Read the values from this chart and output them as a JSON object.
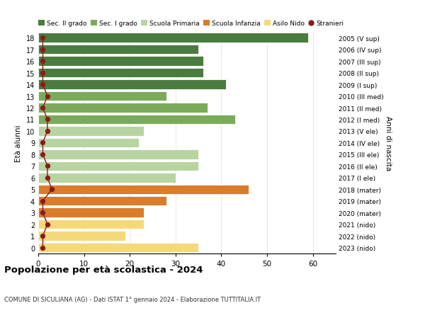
{
  "ages": [
    18,
    17,
    16,
    15,
    14,
    13,
    12,
    11,
    10,
    9,
    8,
    7,
    6,
    5,
    4,
    3,
    2,
    1,
    0
  ],
  "values": [
    59,
    35,
    36,
    36,
    41,
    28,
    37,
    43,
    23,
    22,
    35,
    35,
    30,
    46,
    28,
    23,
    23,
    19,
    35
  ],
  "stranieri": [
    1,
    1,
    1,
    1,
    1,
    2,
    1,
    2,
    2,
    1,
    1,
    2,
    2,
    3,
    1,
    1,
    2,
    1,
    1
  ],
  "right_labels": [
    "2005 (V sup)",
    "2006 (IV sup)",
    "2007 (III sup)",
    "2008 (II sup)",
    "2009 (I sup)",
    "2010 (III med)",
    "2011 (II med)",
    "2012 (I med)",
    "2013 (V ele)",
    "2014 (IV ele)",
    "2015 (III ele)",
    "2016 (II ele)",
    "2017 (I ele)",
    "2018 (mater)",
    "2019 (mater)",
    "2020 (mater)",
    "2021 (nido)",
    "2022 (nido)",
    "2023 (nido)"
  ],
  "bar_colors": [
    "#4a7c3f",
    "#4a7c3f",
    "#4a7c3f",
    "#4a7c3f",
    "#4a7c3f",
    "#7aab5a",
    "#7aab5a",
    "#7aab5a",
    "#b8d4a0",
    "#b8d4a0",
    "#b8d4a0",
    "#b8d4a0",
    "#b8d4a0",
    "#d97c2b",
    "#d97c2b",
    "#d97c2b",
    "#f5d87a",
    "#f5d87a",
    "#f5d87a"
  ],
  "legend_labels": [
    "Sec. II grado",
    "Sec. I grado",
    "Scuola Primaria",
    "Scuola Infanzia",
    "Asilo Nido",
    "Stranieri"
  ],
  "legend_colors": [
    "#4a7c3f",
    "#7aab5a",
    "#b8d4a0",
    "#d97c2b",
    "#f5d87a",
    "#8b1a1a"
  ],
  "title": "Popolazione per età scolastica - 2024",
  "subtitle": "COMUNE DI SICULIANA (AG) - Dati ISTAT 1° gennaio 2024 - Elaborazione TUTTITALIA.IT",
  "ylabel_left": "Età alunni",
  "ylabel_right": "Anni di nascita",
  "stranieri_color": "#8b1a1a",
  "background_color": "#ffffff",
  "xlim": [
    0,
    65
  ],
  "ylim": [
    -0.5,
    18.5
  ],
  "xticks": [
    0,
    10,
    20,
    30,
    40,
    50,
    60
  ]
}
